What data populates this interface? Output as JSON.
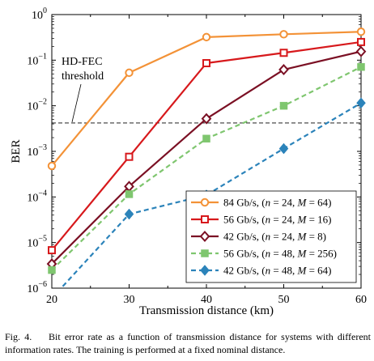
{
  "chart_data": {
    "type": "line",
    "x": [
      20,
      30,
      40,
      50,
      60
    ],
    "xlabel": "Transmission distance (km)",
    "ylabel": "BER",
    "xlim": [
      20,
      60
    ],
    "ylim": [
      1e-06,
      1
    ],
    "yscale": "log",
    "xticks": [
      "20",
      "30",
      "40",
      "50",
      "60"
    ],
    "yticks": [
      {
        "base": "10",
        "exp": "0"
      },
      {
        "base": "10",
        "exp": "−1"
      },
      {
        "base": "10",
        "exp": "−2"
      },
      {
        "base": "10",
        "exp": "−3"
      },
      {
        "base": "10",
        "exp": "−4"
      },
      {
        "base": "10",
        "exp": "−5"
      },
      {
        "base": "10",
        "exp": "−6"
      }
    ],
    "grid": false,
    "legend_position": "bottom-right",
    "threshold": {
      "value": 0.0042,
      "label_line1": "HD-FEC",
      "label_line2": "threshold"
    },
    "series": [
      {
        "rate": "84 Gb/s,",
        "n": "24",
        "M": "64",
        "values": [
          0.00048,
          0.053,
          0.32,
          0.37,
          0.42
        ],
        "color": "#f39237",
        "marker": "circle",
        "dash": "solid"
      },
      {
        "rate": "56 Gb/s,",
        "n": "24",
        "M": "16",
        "values": [
          6.8e-06,
          0.00076,
          0.086,
          0.145,
          0.25
        ],
        "color": "#d7191c",
        "marker": "square-open",
        "dash": "solid"
      },
      {
        "rate": "42 Gb/s,",
        "n": "24",
        "M": "8",
        "values": [
          3.4e-06,
          0.00017,
          0.0052,
          0.062,
          0.155
        ],
        "color": "#7b1024",
        "marker": "diamond-open",
        "dash": "solid"
      },
      {
        "rate": "56 Gb/s,",
        "n": "48",
        "M": "256",
        "values": [
          2.5e-06,
          0.000115,
          0.0019,
          0.01,
          0.071
        ],
        "color": "#7fc66f",
        "marker": "square-filled",
        "dash": "dashed"
      },
      {
        "rate": "42 Gb/s,",
        "n": "48",
        "M": "64",
        "values": [
          6e-07,
          4.2e-05,
          0.00011,
          0.00115,
          0.0115
        ],
        "color": "#2b83ba",
        "marker": "diamond-filled",
        "dash": "dashed"
      }
    ]
  },
  "caption": {
    "fig": "Fig. 4.",
    "text": "Bit error rate as a function of transmission distance for systems with different information rates. The training is performed at a fixed nominal distance."
  }
}
